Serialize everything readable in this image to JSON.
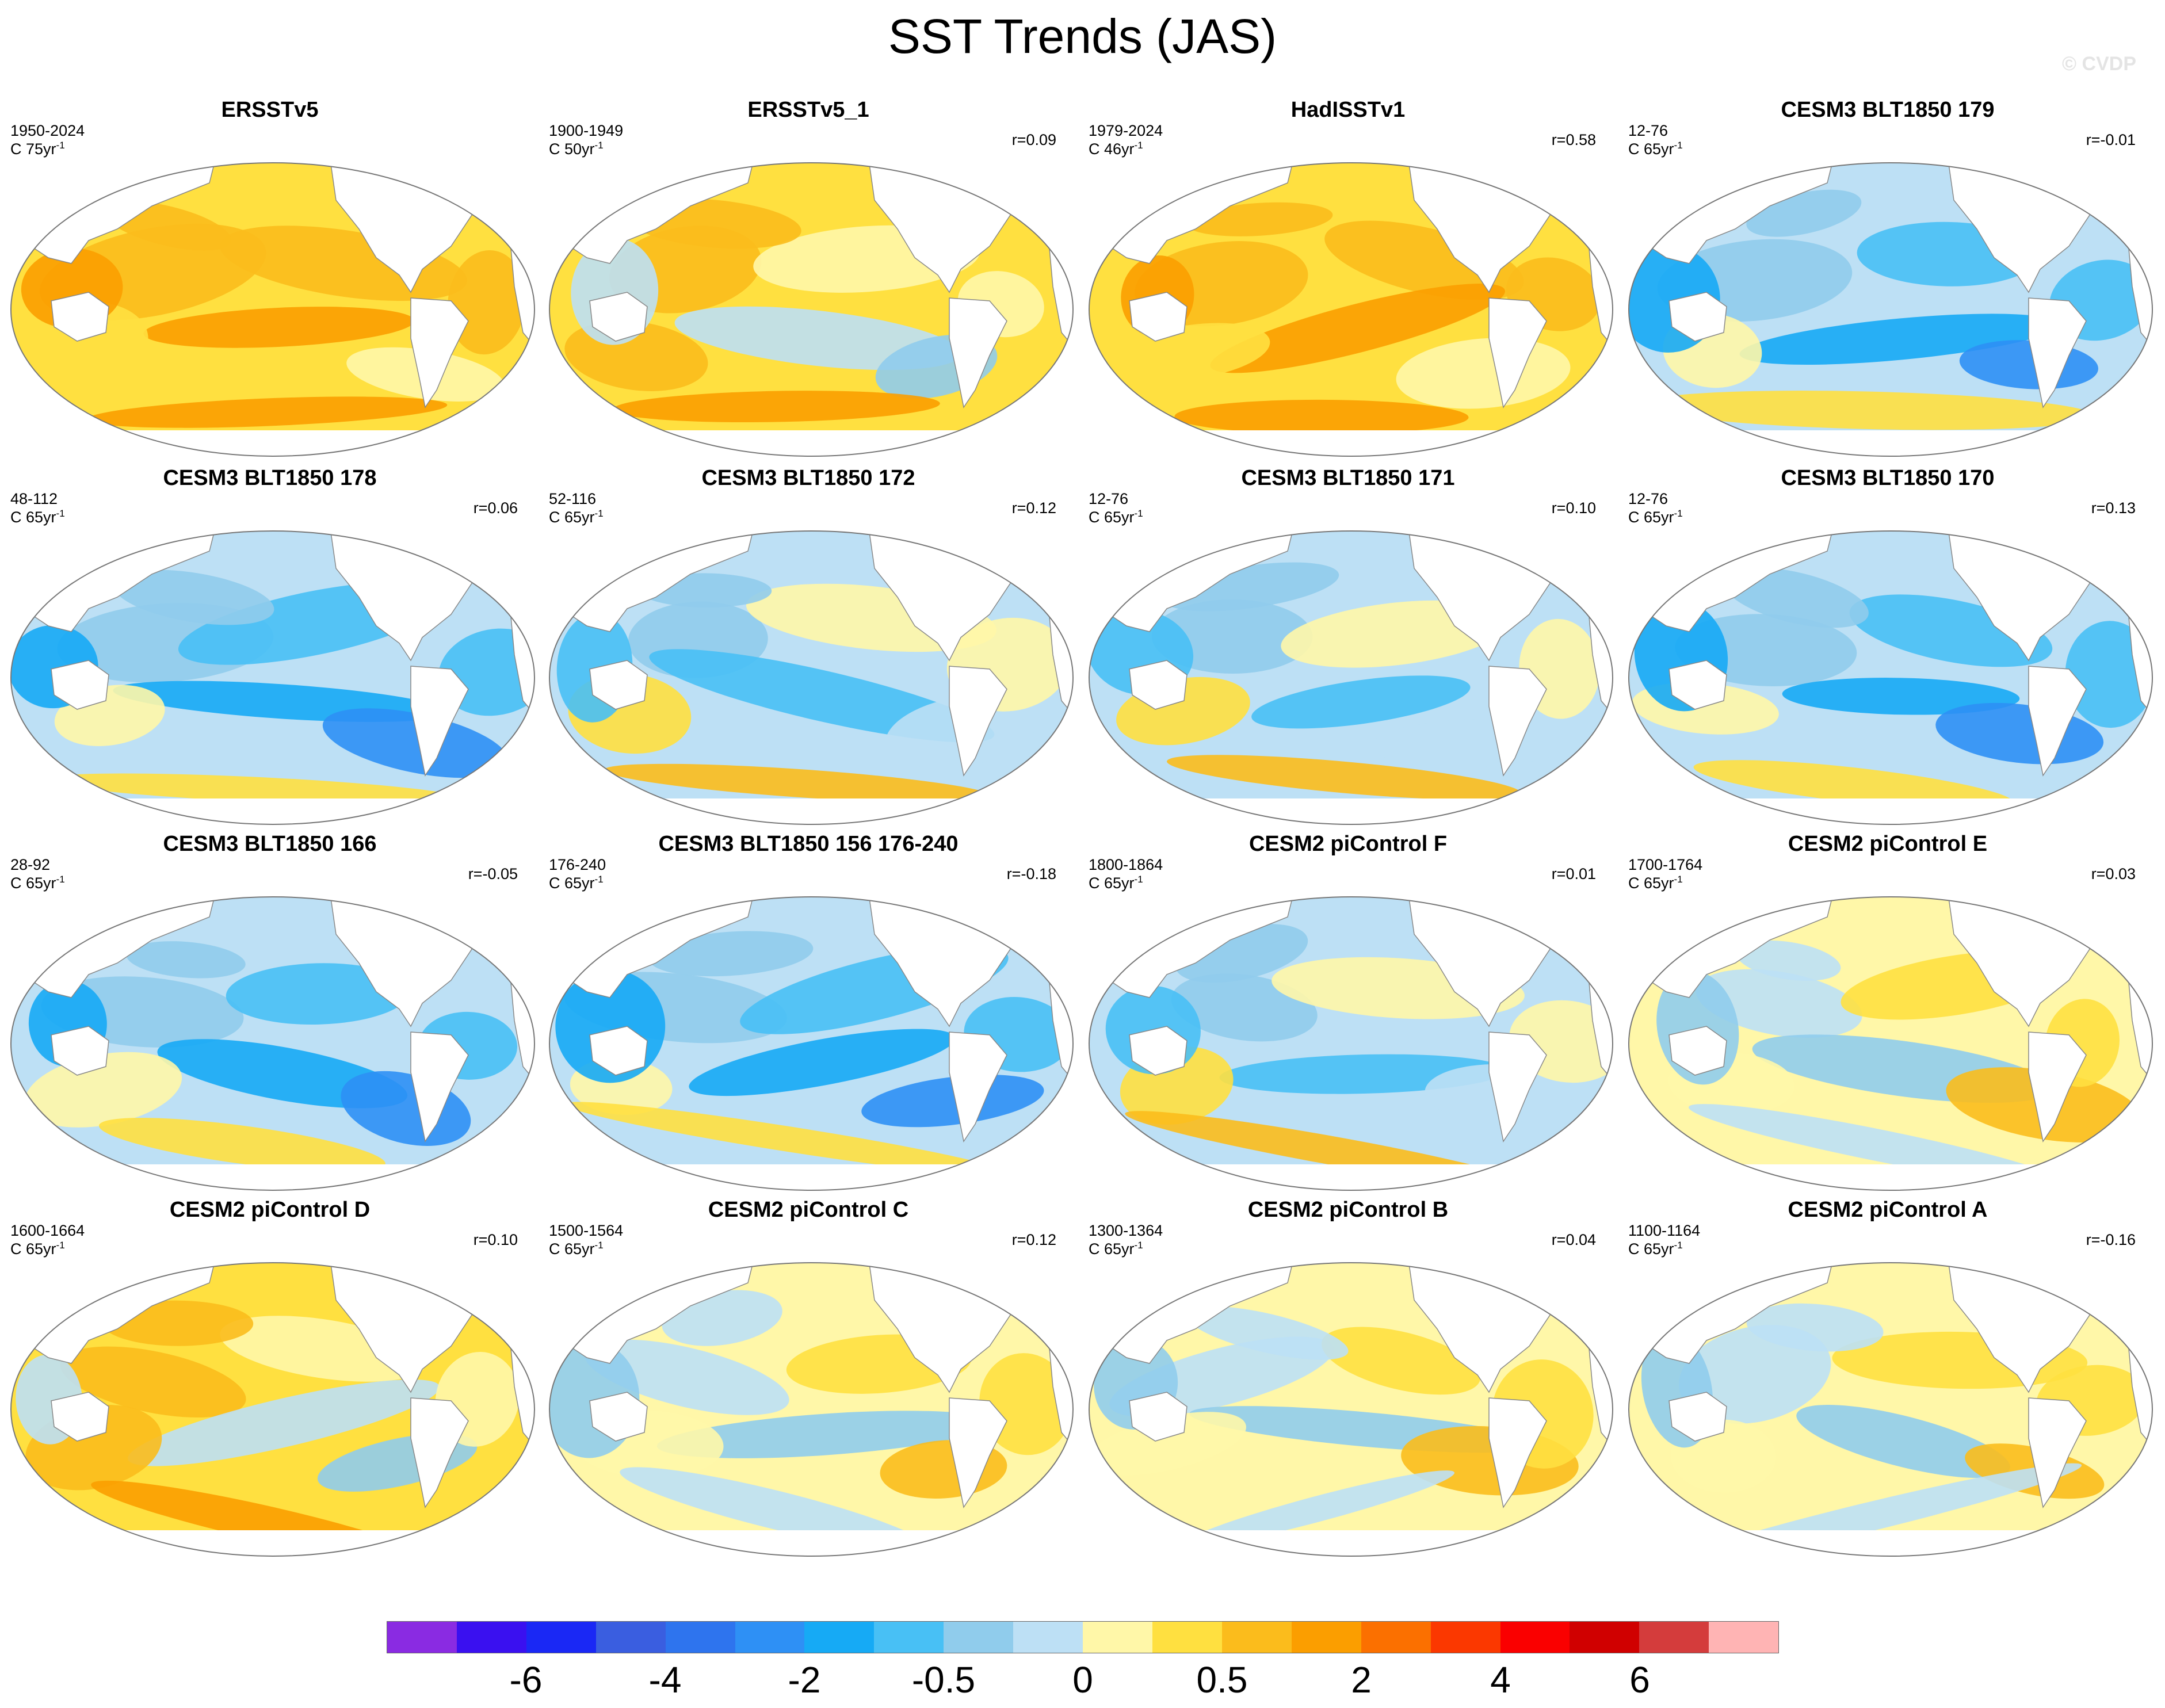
{
  "figure": {
    "title": "SST Trends (JAS)",
    "watermark": "© CVDP"
  },
  "panels": [
    {
      "title": "ERSSTv5",
      "years": "1950-2024",
      "units_prefix": "C 75yr",
      "units_exp": "-1",
      "r": "",
      "pattern": "warm"
    },
    {
      "title": "ERSSTv5_1",
      "years": "1900-1949",
      "units_prefix": "C 50yr",
      "units_exp": "-1",
      "r": "r=0.09",
      "pattern": "warm-mixed"
    },
    {
      "title": "HadISSTv1",
      "years": "1979-2024",
      "units_prefix": "C 46yr",
      "units_exp": "-1",
      "r": "r=0.58",
      "pattern": "warm"
    },
    {
      "title": "CESM3 BLT1850 179",
      "years": "12-76",
      "units_prefix": "C 65yr",
      "units_exp": "-1",
      "r": "r=-0.01",
      "pattern": "cool"
    },
    {
      "title": "CESM3 BLT1850 178",
      "years": "48-112",
      "units_prefix": "C 65yr",
      "units_exp": "-1",
      "r": "r=0.06",
      "pattern": "cool"
    },
    {
      "title": "CESM3 BLT1850 172",
      "years": "52-116",
      "units_prefix": "C 65yr",
      "units_exp": "-1",
      "r": "r=0.12",
      "pattern": "cool-mixed"
    },
    {
      "title": "CESM3 BLT1850 171",
      "years": "12-76",
      "units_prefix": "C 65yr",
      "units_exp": "-1",
      "r": "r=0.10",
      "pattern": "cool-mixed"
    },
    {
      "title": "CESM3 BLT1850 170",
      "years": "12-76",
      "units_prefix": "C 65yr",
      "units_exp": "-1",
      "r": "r=0.13",
      "pattern": "cool"
    },
    {
      "title": "CESM3 BLT1850 166",
      "years": "28-92",
      "units_prefix": "C 65yr",
      "units_exp": "-1",
      "r": "r=-0.05",
      "pattern": "cool"
    },
    {
      "title": "CESM3 BLT1850 156 176-240",
      "years": "176-240",
      "units_prefix": "C 65yr",
      "units_exp": "-1",
      "r": "r=-0.18",
      "pattern": "cool"
    },
    {
      "title": "CESM2 piControl F",
      "years": "1800-1864",
      "units_prefix": "C 65yr",
      "units_exp": "-1",
      "r": "r=0.01",
      "pattern": "cool-mixed"
    },
    {
      "title": "CESM2 piControl E",
      "years": "1700-1764",
      "units_prefix": "C 65yr",
      "units_exp": "-1",
      "r": "r=0.03",
      "pattern": "mixed"
    },
    {
      "title": "CESM2 piControl D",
      "years": "1600-1664",
      "units_prefix": "C 65yr",
      "units_exp": "-1",
      "r": "r=0.10",
      "pattern": "warm-mixed"
    },
    {
      "title": "CESM2 piControl C",
      "years": "1500-1564",
      "units_prefix": "C 65yr",
      "units_exp": "-1",
      "r": "r=0.12",
      "pattern": "mixed"
    },
    {
      "title": "CESM2 piControl B",
      "years": "1300-1364",
      "units_prefix": "C 65yr",
      "units_exp": "-1",
      "r": "r=0.04",
      "pattern": "mixed"
    },
    {
      "title": "CESM2 piControl A",
      "years": "1100-1164",
      "units_prefix": "C 65yr",
      "units_exp": "-1",
      "r": "r=-0.16",
      "pattern": "mixed"
    }
  ],
  "colorbar": {
    "colors": [
      "#8a2be2",
      "#3a10f0",
      "#1a28f5",
      "#3a5ee0",
      "#2e74ee",
      "#2e90f5",
      "#16aaf5",
      "#48c0f5",
      "#90ccec",
      "#bde0f5",
      "#fff7a8",
      "#ffe040",
      "#fbbc1c",
      "#fb9e00",
      "#fb7000",
      "#fb3800",
      "#fa0000",
      "#d00000",
      "#d43c3c",
      "#ffb4b4"
    ],
    "labels": [
      "-6",
      "-4",
      "-2",
      "-0.5",
      "0",
      "0.5",
      "2",
      "4",
      "6"
    ],
    "label_positions": [
      2,
      4,
      6,
      8,
      10,
      12,
      14,
      16,
      18
    ]
  },
  "chart_data": {
    "type": "heatmap",
    "title": "SST Trends (JAS)",
    "units": "C per period",
    "colorbar_levels": [
      "-6",
      "-4",
      "-2",
      "-0.5",
      "0",
      "0.5",
      "2",
      "4",
      "6"
    ],
    "panels": [
      "ERSSTv5",
      "ERSSTv5_1",
      "HadISSTv1",
      "CESM3 BLT1850 179",
      "CESM3 BLT1850 178",
      "CESM3 BLT1850 172",
      "CESM3 BLT1850 171",
      "CESM3 BLT1850 170",
      "CESM3 BLT1850 166",
      "CESM3 BLT1850 156 176-240",
      "CESM2 piControl F",
      "CESM2 piControl E",
      "CESM2 piControl D",
      "CESM2 piControl C",
      "CESM2 piControl B",
      "CESM2 piControl A"
    ],
    "pattern_correlations": [
      "",
      "r=0.09",
      "r=0.58",
      "r=-0.01",
      "r=0.06",
      "r=0.12",
      "r=0.10",
      "r=0.13",
      "r=-0.05",
      "r=-0.18",
      "r=0.01",
      "r=0.03",
      "r=0.10",
      "r=0.12",
      "r=0.04",
      "r=-0.16"
    ]
  }
}
